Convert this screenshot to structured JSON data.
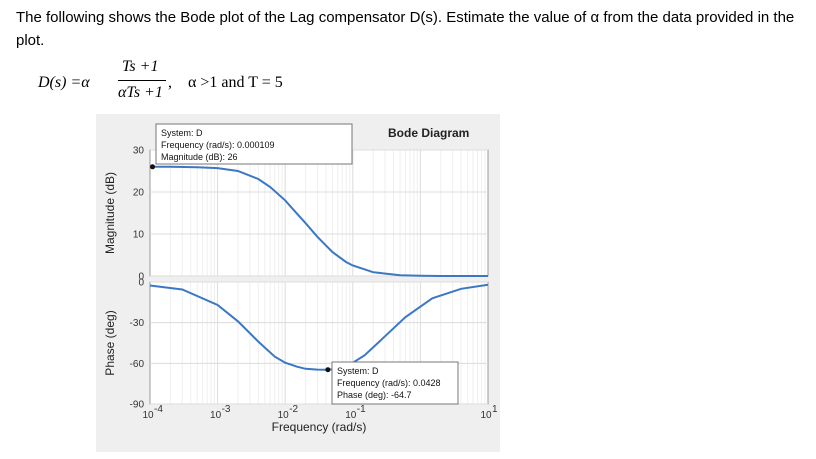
{
  "question": {
    "text": "The following shows the Bode plot of the Lag compensator D(s). Estimate the value of α from the data provided in the plot."
  },
  "formula": {
    "lhs": "D(s) =α",
    "numerator": "Ts +1",
    "denominator": "αTs +1",
    "comma": ",",
    "condition": "α >1 and T = 5"
  },
  "chart_data": {
    "type": "line",
    "title": "Bode Diagram",
    "xlabel": "Frequency (rad/s)",
    "x_scale": "log",
    "xlim": [
      0.0001,
      10
    ],
    "x_ticks": [
      {
        "base": "10",
        "exp": "-4",
        "value": 0.0001
      },
      {
        "base": "10",
        "exp": "-3",
        "value": 0.001
      },
      {
        "base": "10",
        "exp": "-2",
        "value": 0.01
      },
      {
        "base": "10",
        "exp": "-1",
        "value": 0.1
      },
      {
        "base": "10",
        "exp": "1",
        "value": 10
      }
    ],
    "grid": true,
    "subplots": [
      {
        "ylabel": "Magnitude (dB)",
        "ylim": [
          0,
          30
        ],
        "y_ticks": [
          "30",
          "20",
          "10",
          "0"
        ],
        "y_tick_values": [
          30,
          20,
          10,
          0
        ],
        "series": [
          {
            "x": [
              0.0001,
              0.0002,
              0.0005,
              0.001,
              0.002,
              0.004,
              0.006,
              0.01,
              0.015,
              0.02,
              0.03,
              0.05,
              0.08,
              0.1,
              0.2,
              0.5,
              1,
              2,
              10
            ],
            "y": [
              26,
              26,
              25.9,
              25.7,
              25,
              23.1,
              21.2,
              18.0,
              14.8,
              12.6,
              9.3,
              5.7,
              3.3,
              2.5,
              0.9,
              0.2,
              0.05,
              0,
              0
            ]
          }
        ],
        "datatip": {
          "x": 0.000109,
          "y": 26,
          "lines": [
            "System: D",
            "Frequency (rad/s): 0.000109",
            "Magnitude (dB): 26"
          ]
        }
      },
      {
        "ylabel": "Phase (deg)",
        "ylim": [
          -90,
          0
        ],
        "y_ticks": [
          "0",
          "-30",
          "-60",
          "-90"
        ],
        "y_tick_values": [
          0,
          -30,
          -60,
          -90
        ],
        "series": [
          {
            "x": [
              0.0001,
              0.0003,
              0.001,
              0.002,
              0.004,
              0.007,
              0.01,
              0.015,
              0.02,
              0.03,
              0.0428,
              0.06,
              0.09,
              0.15,
              0.3,
              0.6,
              1.5,
              4,
              10
            ],
            "y": [
              -2.6,
              -5.5,
              -17,
              -29,
              -44,
              -55,
              -59.5,
              -62.5,
              -64,
              -64.6,
              -64.7,
              -64,
              -61,
              -54,
              -40,
              -26,
              -12,
              -5,
              -2
            ]
          }
        ],
        "datatip": {
          "x": 0.0428,
          "y": -64.7,
          "lines": [
            "System: D",
            "Frequency (rad/s): 0.0428",
            "Phase (deg): -64.7"
          ]
        }
      }
    ]
  }
}
